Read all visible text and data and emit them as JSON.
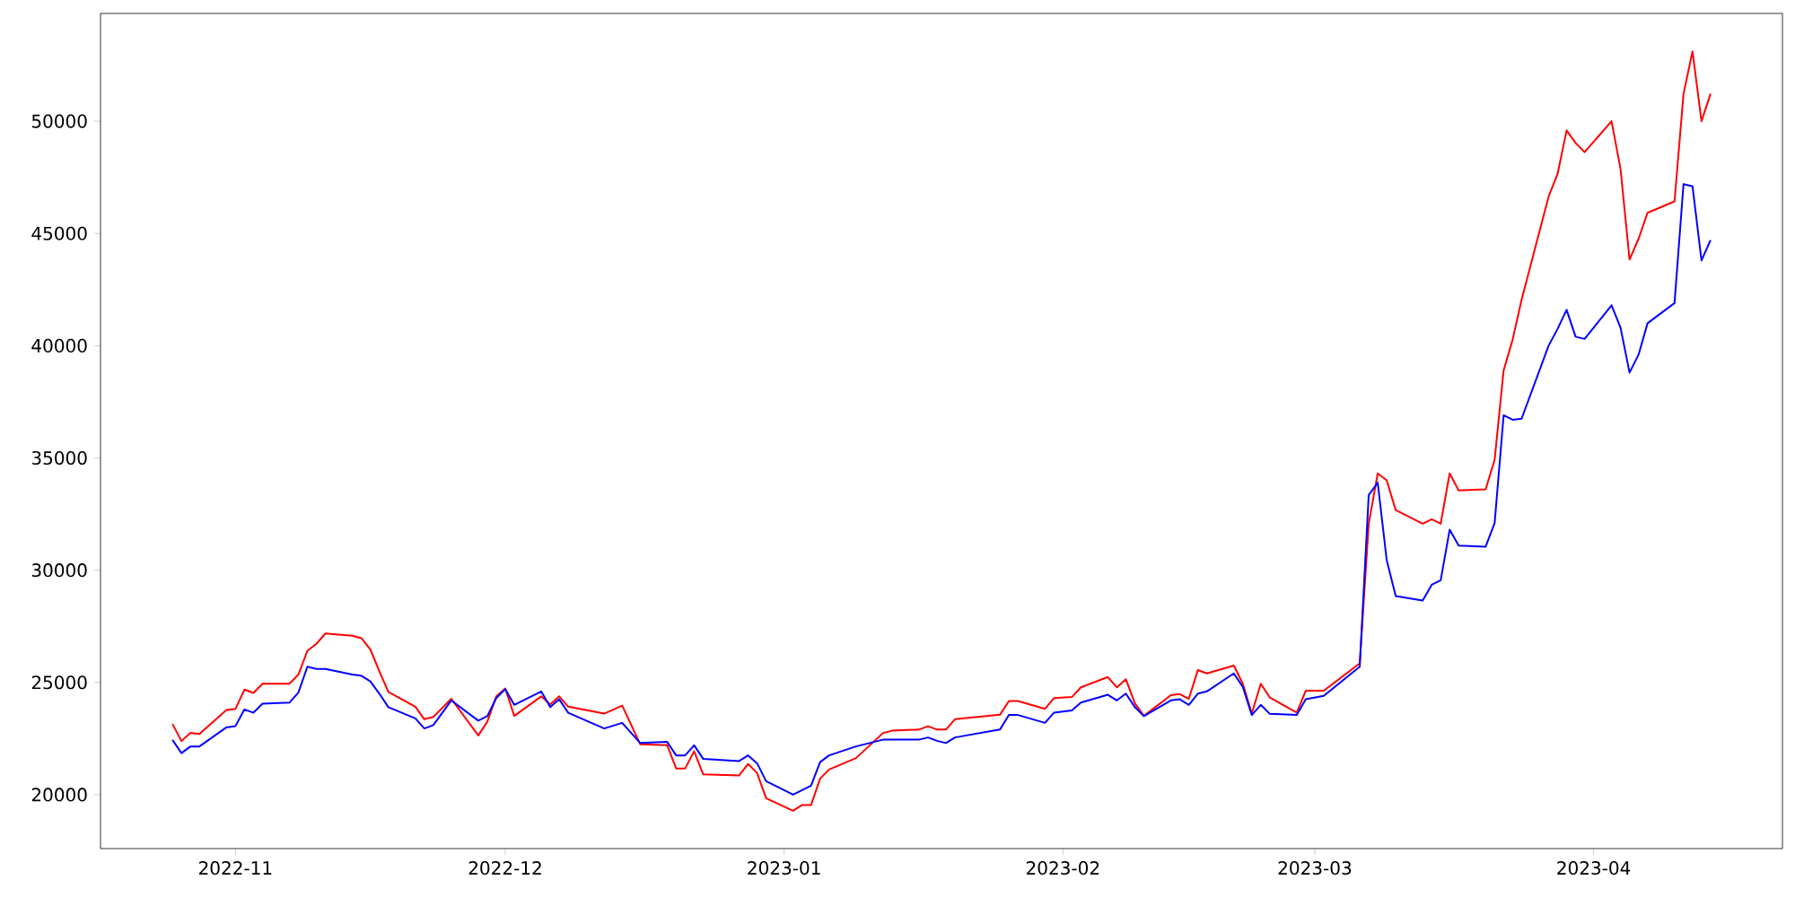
{
  "chart_data": {
    "type": "line",
    "x": [
      "2022-10-25",
      "2022-10-26",
      "2022-10-27",
      "2022-10-28",
      "2022-10-31",
      "2022-11-01",
      "2022-11-02",
      "2022-11-03",
      "2022-11-04",
      "2022-11-07",
      "2022-11-08",
      "2022-11-09",
      "2022-11-10",
      "2022-11-11",
      "2022-11-14",
      "2022-11-15",
      "2022-11-16",
      "2022-11-17",
      "2022-11-18",
      "2022-11-21",
      "2022-11-22",
      "2022-11-23",
      "2022-11-25",
      "2022-11-28",
      "2022-11-29",
      "2022-11-30",
      "2022-12-01",
      "2022-12-02",
      "2022-12-05",
      "2022-12-06",
      "2022-12-07",
      "2022-12-08",
      "2022-12-12",
      "2022-12-14",
      "2022-12-16",
      "2022-12-19",
      "2022-12-20",
      "2022-12-21",
      "2022-12-22",
      "2022-12-23",
      "2022-12-27",
      "2022-12-28",
      "2022-12-29",
      "2022-12-30",
      "2023-01-02",
      "2023-01-03",
      "2023-01-04",
      "2023-01-05",
      "2023-01-06",
      "2023-01-09",
      "2023-01-12",
      "2023-01-13",
      "2023-01-16",
      "2023-01-17",
      "2023-01-18",
      "2023-01-19",
      "2023-01-20",
      "2023-01-25",
      "2023-01-26",
      "2023-01-27",
      "2023-01-30",
      "2023-01-31",
      "2023-02-02",
      "2023-02-03",
      "2023-02-06",
      "2023-02-07",
      "2023-02-08",
      "2023-02-09",
      "2023-02-10",
      "2023-02-13",
      "2023-02-14",
      "2023-02-15",
      "2023-02-16",
      "2023-02-17",
      "2023-02-20",
      "2023-02-21",
      "2023-02-22",
      "2023-02-23",
      "2023-02-24",
      "2023-02-27",
      "2023-02-28",
      "2023-03-02",
      "2023-03-06",
      "2023-03-07",
      "2023-03-08",
      "2023-03-09",
      "2023-03-10",
      "2023-03-13",
      "2023-03-14",
      "2023-03-15",
      "2023-03-16",
      "2023-03-17",
      "2023-03-20",
      "2023-03-21",
      "2023-03-22",
      "2023-03-23",
      "2023-03-24",
      "2023-03-27",
      "2023-03-28",
      "2023-03-29",
      "2023-03-30",
      "2023-03-31",
      "2023-04-03",
      "2023-04-04",
      "2023-04-05",
      "2023-04-06",
      "2023-04-07",
      "2023-04-10",
      "2023-04-11",
      "2023-04-12",
      "2023-04-13",
      "2023-04-14"
    ],
    "series": [
      {
        "color": "#ff0000",
        "values": [
          23150,
          22390,
          22750,
          22700,
          23770,
          23820,
          24680,
          24530,
          24940,
          24940,
          25350,
          26410,
          26720,
          27180,
          27080,
          26970,
          26470,
          25500,
          24580,
          23920,
          23360,
          23460,
          24270,
          22640,
          23250,
          24380,
          24730,
          23510,
          24380,
          24020,
          24380,
          23920,
          23610,
          23970,
          22250,
          22200,
          21170,
          21170,
          21930,
          20910,
          20860,
          21370,
          20960,
          19840,
          19280,
          19540,
          19540,
          20710,
          21120,
          21630,
          22750,
          22850,
          22900,
          23050,
          22900,
          22900,
          23360,
          23560,
          24170,
          24170,
          23820,
          24300,
          24350,
          24780,
          25240,
          24780,
          25140,
          24070,
          23510,
          24430,
          24480,
          24270,
          25550,
          25400,
          25750,
          24940,
          23610,
          24940,
          24330,
          23660,
          24630,
          24630,
          25850,
          32070,
          34310,
          34000,
          32680,
          32070,
          32270,
          32070,
          34310,
          33550,
          33600,
          34920,
          38900,
          40270,
          42050,
          46640,
          47660,
          49590,
          49030,
          48620,
          50000,
          47860,
          43840,
          44760,
          45920,
          46430,
          51220,
          53110,
          50000,
          51220
        ]
      },
      {
        "color": "#0000ff",
        "values": [
          22440,
          21850,
          22150,
          22150,
          23000,
          23050,
          23800,
          23650,
          24050,
          24100,
          24550,
          25700,
          25600,
          25600,
          25350,
          25300,
          25050,
          24500,
          23900,
          23400,
          22950,
          23100,
          24200,
          23300,
          23500,
          24300,
          24700,
          24000,
          24600,
          23900,
          24250,
          23650,
          22950,
          23200,
          22300,
          22350,
          21750,
          21750,
          22200,
          21600,
          21500,
          21750,
          21400,
          20600,
          20000,
          20200,
          20400,
          21450,
          21750,
          22150,
          22450,
          22450,
          22450,
          22550,
          22400,
          22300,
          22550,
          22900,
          23550,
          23550,
          23200,
          23650,
          23750,
          24100,
          24450,
          24200,
          24500,
          23900,
          23500,
          24200,
          24250,
          24000,
          24500,
          24600,
          25400,
          24800,
          23550,
          24000,
          23600,
          23550,
          24250,
          24400,
          25700,
          33350,
          33900,
          30450,
          28850,
          28650,
          29350,
          29550,
          31800,
          31100,
          31050,
          32100,
          36900,
          36700,
          36750,
          40000,
          40750,
          41600,
          40400,
          40300,
          41800,
          40800,
          38800,
          39600,
          41000,
          41900,
          47200,
          47100,
          43800,
          44700
        ]
      }
    ],
    "xlim": [
      "2022-10-17",
      "2023-04-22"
    ],
    "ylim": [
      17600,
      54800
    ],
    "xticks": [
      {
        "value": "2022-11-01",
        "label": "2022-11"
      },
      {
        "value": "2022-12-01",
        "label": "2022-12"
      },
      {
        "value": "2023-01-01",
        "label": "2023-01"
      },
      {
        "value": "2023-02-01",
        "label": "2023-02"
      },
      {
        "value": "2023-03-01",
        "label": "2023-03"
      },
      {
        "value": "2023-04-01",
        "label": "2023-04"
      }
    ],
    "yticks": [
      20000,
      25000,
      30000,
      35000,
      40000,
      45000,
      50000
    ]
  }
}
